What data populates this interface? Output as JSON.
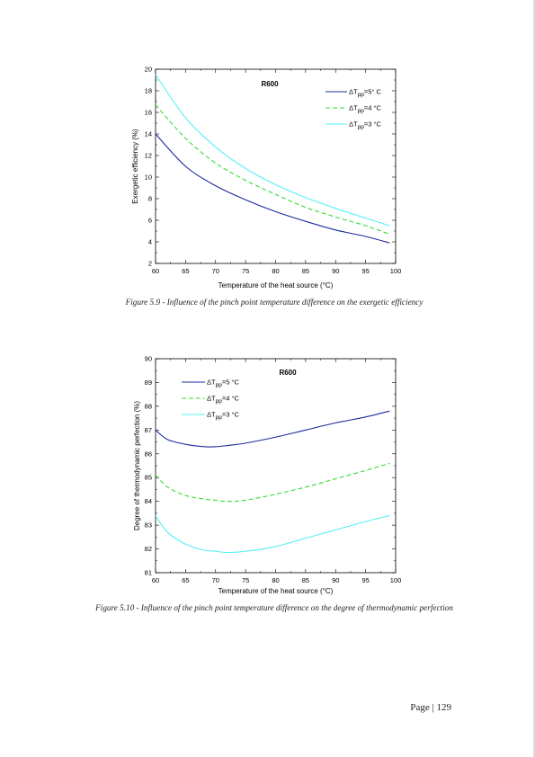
{
  "chart_data": [
    {
      "type": "line",
      "annotation": "R600",
      "xlabel": "Temperature of the heat source (°C)",
      "ylabel": "Exergetic efficiency (%)",
      "xlim": [
        60,
        100
      ],
      "ylim": [
        2,
        20
      ],
      "xticks": [
        60,
        65,
        70,
        75,
        80,
        85,
        90,
        95,
        100
      ],
      "yticks": [
        2,
        4,
        6,
        8,
        10,
        12,
        14,
        16,
        18,
        20
      ],
      "legend": "top-right",
      "grid": false,
      "x": [
        60,
        65,
        70,
        75,
        80,
        85,
        90,
        95,
        99
      ],
      "series": [
        {
          "name": "ΔTpp=5° C",
          "color": "#1a2a9c",
          "dash": "solid",
          "values": [
            14.0,
            11.0,
            9.2,
            7.9,
            6.8,
            5.9,
            5.1,
            4.5,
            3.9
          ]
        },
        {
          "name": "ΔTpp=4 °C",
          "color": "#33dd33",
          "dash": "dashed",
          "values": [
            16.7,
            13.6,
            11.3,
            9.7,
            8.4,
            7.2,
            6.3,
            5.5,
            4.7
          ]
        },
        {
          "name": "ΔTpp=3 °C",
          "color": "#55f0f5",
          "dash": "solid",
          "values": [
            19.5,
            15.5,
            12.8,
            10.8,
            9.3,
            8.1,
            7.1,
            6.2,
            5.5
          ]
        }
      ]
    },
    {
      "type": "line",
      "annotation": "R600",
      "xlabel": "Temperature of the heat source (°C)",
      "ylabel": "Degree of thermodynamic perfection (%)",
      "xlim": [
        60,
        100
      ],
      "ylim": [
        81,
        90
      ],
      "xticks": [
        60,
        65,
        70,
        75,
        80,
        85,
        90,
        95,
        100
      ],
      "yticks": [
        81,
        82,
        83,
        84,
        85,
        86,
        87,
        88,
        89,
        90
      ],
      "legend": "top-left",
      "grid": false,
      "x": [
        60,
        62,
        65,
        68,
        70,
        72,
        75,
        80,
        85,
        90,
        95,
        99
      ],
      "series": [
        {
          "name": "ΔTpp=5 °C",
          "color": "#1a2a9c",
          "dash": "solid",
          "values": [
            87.0,
            86.6,
            86.4,
            86.3,
            86.3,
            86.35,
            86.45,
            86.7,
            87.0,
            87.3,
            87.55,
            87.8
          ]
        },
        {
          "name": "ΔTpp=4 °C",
          "color": "#33dd33",
          "dash": "dashed",
          "values": [
            85.1,
            84.6,
            84.25,
            84.1,
            84.05,
            84.0,
            84.05,
            84.3,
            84.6,
            84.95,
            85.3,
            85.6
          ]
        },
        {
          "name": "ΔTpp=3 °C",
          "color": "#55f0f5",
          "dash": "solid",
          "values": [
            83.4,
            82.7,
            82.2,
            81.95,
            81.9,
            81.85,
            81.9,
            82.1,
            82.45,
            82.8,
            83.15,
            83.4
          ]
        }
      ]
    }
  ],
  "captions": {
    "fig1": "Figure 5.9 - Influence of the pinch point temperature difference on the exergetic efficiency",
    "fig2": "Figure 5.10 - Influence of the pinch point temperature difference on the degree of thermodynamic perfection"
  },
  "footer": {
    "page": "Page | 129"
  }
}
